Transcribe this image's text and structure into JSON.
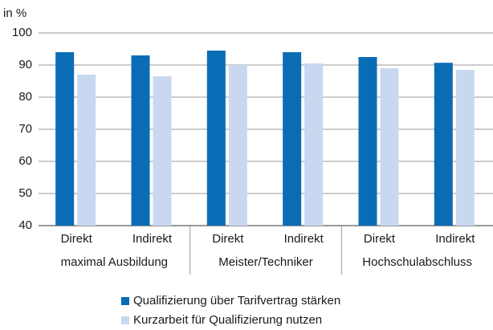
{
  "chart_data": {
    "type": "bar",
    "unit_label": "in %",
    "categories": [
      "Direkt",
      "Indirekt",
      "Direkt",
      "Indirekt",
      "Direkt",
      "Indirekt"
    ],
    "groups": [
      "maximal Ausbildung",
      "Meister/Techniker",
      "Hochschulabschluss"
    ],
    "series": [
      {
        "name": "Qualifizierung über Tarifvertrag stärken",
        "color": "#0a6cb4",
        "values": [
          94,
          93,
          94.5,
          94,
          92.5,
          90.7
        ]
      },
      {
        "name": "Kurzarbeit für Qualifizierung nutzen",
        "color": "#c9d8f1",
        "values": [
          87,
          86.5,
          90,
          90.5,
          89,
          88.5
        ]
      }
    ],
    "ylim": [
      40,
      100
    ],
    "yticks": [
      40,
      50,
      60,
      70,
      80,
      90,
      100
    ],
    "grid": true
  }
}
